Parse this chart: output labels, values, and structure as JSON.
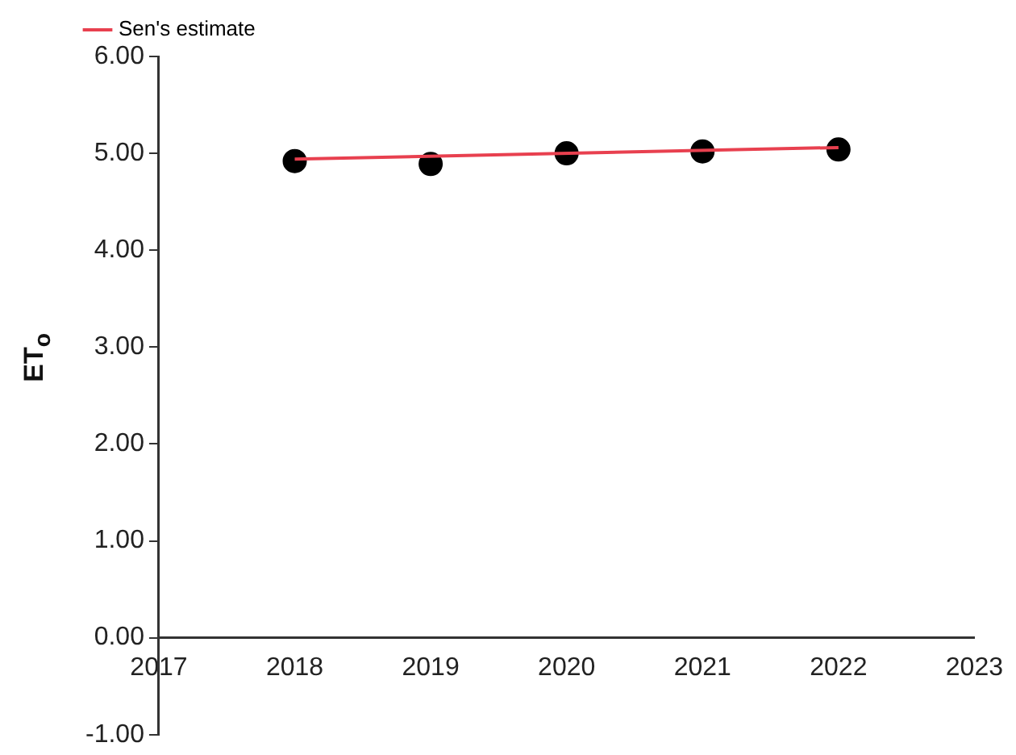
{
  "chart_data": {
    "type": "scatter",
    "ylabel": "ET$_{o}$",
    "x": [
      2018,
      2019,
      2020,
      2021,
      2022
    ],
    "series": [
      {
        "color": "#000000",
        "values": [
          4.92,
          4.89,
          5.0,
          5.02,
          5.04
        ],
        "marker": "circle"
      },
      {
        "type": "line",
        "name": "Sen's estimate",
        "color": "#e8404f",
        "x": [
          2018,
          2022
        ],
        "values": [
          4.94,
          5.06
        ],
        "marker": "none"
      }
    ],
    "xlim": [
      2017,
      2023
    ],
    "xticks": [
      2017,
      2018,
      2019,
      2020,
      2021,
      2022,
      2023
    ],
    "ylim": [
      -1,
      6
    ],
    "yticks": [
      {
        "value": -1,
        "label": "-1.00"
      },
      {
        "value": 0,
        "label": "0.00"
      },
      {
        "value": 1,
        "label": "1.00"
      },
      {
        "value": 2,
        "label": "2.00"
      },
      {
        "value": 3,
        "label": "3.00"
      },
      {
        "value": 4,
        "label": "4.00"
      },
      {
        "value": 5,
        "label": "5.00"
      },
      {
        "value": 6,
        "label": "6.00"
      }
    ],
    "grid": false,
    "legend": "top left"
  }
}
